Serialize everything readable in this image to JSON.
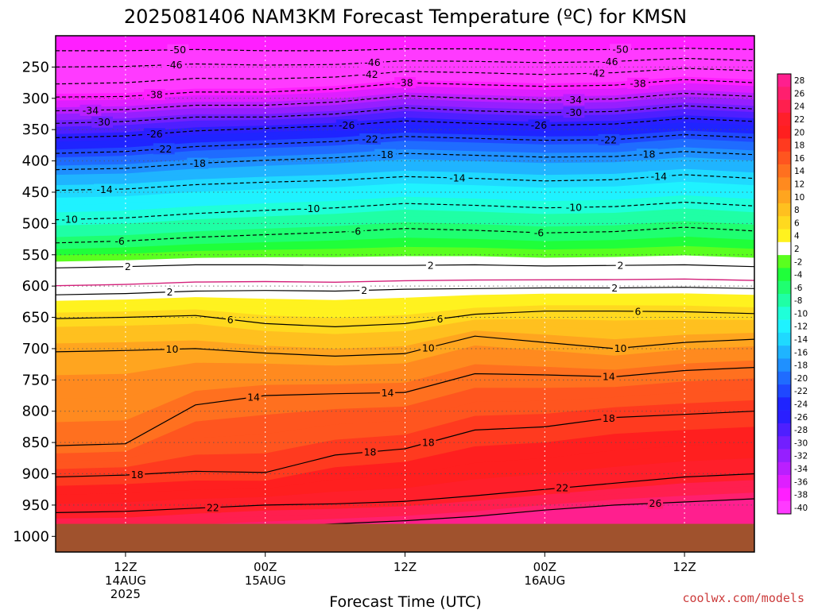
{
  "title": "2025081406 NAM3KM Forecast Temperature (ºC) for KMSN",
  "credit": "coolwx.com/models",
  "chart_data": {
    "type": "heatmap",
    "title": "2025081406 NAM3KM Forecast Temperature (ºC) for KMSN",
    "xlabel": "Forecast Time (UTC)",
    "ylabel": "",
    "x_ticks": [
      {
        "hour": 6,
        "lines": [
          "12Z",
          "14AUG",
          "2025"
        ]
      },
      {
        "hour": 18,
        "lines": [
          "00Z",
          "15AUG"
        ]
      },
      {
        "hour": 30,
        "lines": [
          "12Z"
        ]
      },
      {
        "hour": 42,
        "lines": [
          "00Z",
          "16AUG"
        ]
      },
      {
        "hour": 54,
        "lines": [
          "12Z"
        ]
      }
    ],
    "x_range_hours": [
      0,
      60
    ],
    "y_ticks": [
      250,
      300,
      350,
      400,
      450,
      500,
      550,
      600,
      650,
      700,
      750,
      800,
      850,
      900,
      950,
      1000
    ],
    "y_range_hPa": [
      200,
      1025
    ],
    "y_axis_inverted": true,
    "ground_pressure_hPa": 980,
    "grid": true,
    "colorbar": {
      "labels": [
        28,
        26,
        24,
        22,
        20,
        18,
        16,
        14,
        12,
        10,
        8,
        6,
        4,
        2,
        -2,
        -4,
        -6,
        -8,
        -10,
        -12,
        -14,
        -16,
        -18,
        -20,
        -22,
        -24,
        -26,
        -28,
        -30,
        -32,
        -34,
        -36,
        -38,
        -40
      ],
      "colors": [
        "#ff1f8e",
        "#ff1f6e",
        "#ff1f4e",
        "#ff1f2a",
        "#ff1f1f",
        "#ff3a1f",
        "#ff551f",
        "#ff701f",
        "#ff8a1f",
        "#ffa51f",
        "#ffc01f",
        "#ffd91f",
        "#fff21f",
        "#ffffff",
        "#5aff1f",
        "#1fff3a",
        "#1fff70",
        "#1fffa5",
        "#1fffd9",
        "#1ff2ff",
        "#1fd9ff",
        "#1fb4ff",
        "#1f90ff",
        "#1f6cff",
        "#1f48ff",
        "#1f24ff",
        "#2a1fff",
        "#4e1fff",
        "#721fff",
        "#961fff",
        "#ba1fff",
        "#de1fff",
        "#ff1fff",
        "#ff3aff"
      ]
    },
    "isotherms": [
      {
        "temp": -50,
        "p": [
          224,
          224,
          222,
          224,
          224,
          221,
          221,
          223,
          222,
          220,
          222
        ],
        "labels": [
          {
            "hour": 10.5,
            "text": "-50"
          },
          {
            "hour": 48.5,
            "text": "-50"
          }
        ]
      },
      {
        "temp": -46,
        "p": [
          250,
          249,
          245,
          247,
          246,
          240,
          241,
          243,
          241,
          236,
          240
        ],
        "labels": [
          {
            "hour": 10.2,
            "text": "-46"
          },
          {
            "hour": 27.2,
            "text": "-46"
          },
          {
            "hour": 47.6,
            "text": "-46"
          }
        ]
      },
      {
        "temp": -42,
        "p": [
          277,
          275,
          268,
          269,
          266,
          257,
          259,
          262,
          259,
          252,
          256
        ],
        "labels": [
          {
            "hour": 27.0,
            "text": "-42"
          },
          {
            "hour": 46.5,
            "text": "-42"
          }
        ]
      },
      {
        "temp": -38,
        "p": [
          298,
          297,
          290,
          290,
          285,
          275,
          278,
          281,
          279,
          270,
          275
        ],
        "labels": [
          {
            "hour": 8.5,
            "text": "-38"
          },
          {
            "hour": 30.0,
            "text": "-38"
          },
          {
            "hour": 50.0,
            "text": "-38"
          }
        ]
      },
      {
        "temp": -34,
        "p": [
          320,
          318,
          311,
          311,
          306,
          296,
          300,
          303,
          301,
          292,
          297
        ],
        "labels": [
          {
            "hour": 3.0,
            "text": "-34"
          },
          {
            "hour": 44.5,
            "text": "-34"
          }
        ]
      },
      {
        "temp": -30,
        "p": [
          340,
          337,
          330,
          330,
          325,
          315,
          320,
          323,
          321,
          312,
          317
        ],
        "labels": [
          {
            "hour": 4.0,
            "text": "-30"
          },
          {
            "hour": 44.5,
            "text": "-30"
          }
        ]
      },
      {
        "temp": -26,
        "p": [
          363,
          360,
          352,
          348,
          344,
          336,
          340,
          343,
          341,
          332,
          337
        ],
        "labels": [
          {
            "hour": 8.5,
            "text": "-26"
          },
          {
            "hour": 25.0,
            "text": "-26"
          },
          {
            "hour": 41.5,
            "text": "-26"
          }
        ]
      },
      {
        "temp": -22,
        "p": [
          388,
          385,
          377,
          373,
          369,
          361,
          364,
          367,
          366,
          358,
          363
        ],
        "labels": [
          {
            "hour": 9.3,
            "text": "-22"
          },
          {
            "hour": 27.0,
            "text": "-22"
          },
          {
            "hour": 47.5,
            "text": "-22"
          }
        ]
      },
      {
        "temp": -18,
        "p": [
          414,
          412,
          404,
          399,
          395,
          388,
          391,
          394,
          393,
          385,
          390
        ],
        "labels": [
          {
            "hour": 12.2,
            "text": "-18"
          },
          {
            "hour": 28.3,
            "text": "-18"
          },
          {
            "hour": 50.8,
            "text": "-18"
          }
        ]
      },
      {
        "temp": -14,
        "p": [
          447,
          445,
          438,
          434,
          431,
          425,
          428,
          432,
          430,
          422,
          428
        ],
        "labels": [
          {
            "hour": 4.2,
            "text": "-14"
          },
          {
            "hour": 34.5,
            "text": "-14"
          },
          {
            "hour": 51.8,
            "text": "-14"
          }
        ]
      },
      {
        "temp": -10,
        "p": [
          494,
          491,
          484,
          479,
          475,
          468,
          471,
          475,
          473,
          466,
          472
        ],
        "labels": [
          {
            "hour": 1.2,
            "text": "-10"
          },
          {
            "hour": 22.0,
            "text": "-10"
          },
          {
            "hour": 44.5,
            "text": "-10"
          }
        ]
      },
      {
        "temp": -6,
        "p": [
          531,
          528,
          522,
          518,
          514,
          508,
          511,
          515,
          513,
          506,
          512
        ],
        "labels": [
          {
            "hour": 5.5,
            "text": "-6"
          },
          {
            "hour": 25.8,
            "text": "-6"
          },
          {
            "hour": 41.5,
            "text": "-6"
          }
        ]
      },
      {
        "temp": 2,
        "p": [
          571,
          569,
          566,
          566,
          567,
          567,
          566,
          568,
          567,
          566,
          569
        ],
        "labels": [
          {
            "hour": 6.2,
            "text": "2"
          },
          {
            "hour": 32.2,
            "text": "2"
          },
          {
            "hour": 48.5,
            "text": "2"
          }
        ]
      },
      {
        "temp": 2,
        "p": [
          614,
          612,
          608,
          607,
          608,
          605,
          604,
          603,
          603,
          602,
          604
        ],
        "labels": [
          {
            "hour": 9.8,
            "text": "2"
          },
          {
            "hour": 26.5,
            "text": "2"
          },
          {
            "hour": 48.0,
            "text": "2"
          }
        ]
      },
      {
        "temp": 6,
        "p": [
          652,
          650,
          647,
          660,
          665,
          660,
          645,
          640,
          640,
          641,
          644
        ],
        "labels": [
          {
            "hour": 15.0,
            "text": "6"
          },
          {
            "hour": 33.0,
            "text": "6"
          },
          {
            "hour": 50.0,
            "text": "6"
          }
        ]
      },
      {
        "temp": 10,
        "p": [
          705,
          703,
          700,
          707,
          712,
          708,
          680,
          690,
          700,
          690,
          685
        ],
        "labels": [
          {
            "hour": 10.0,
            "text": "10"
          },
          {
            "hour": 32.0,
            "text": "10"
          },
          {
            "hour": 48.5,
            "text": "10"
          }
        ]
      },
      {
        "temp": 14,
        "p": [
          855,
          852,
          790,
          775,
          772,
          770,
          740,
          742,
          745,
          735,
          730
        ],
        "labels": [
          {
            "hour": 17.0,
            "text": "14"
          },
          {
            "hour": 28.5,
            "text": "14"
          },
          {
            "hour": 47.5,
            "text": "14"
          }
        ]
      },
      {
        "temp": 18,
        "p": [
          905,
          902,
          896,
          898,
          870,
          860,
          830,
          825,
          810,
          805,
          800
        ],
        "labels": [
          {
            "hour": 7.0,
            "text": "18"
          },
          {
            "hour": 27.0,
            "text": "18"
          },
          {
            "hour": 32.0,
            "text": "18"
          },
          {
            "hour": 47.5,
            "text": "18"
          }
        ]
      },
      {
        "temp": 22,
        "p": [
          962,
          960,
          955,
          950,
          948,
          944,
          935,
          925,
          915,
          905,
          900
        ],
        "labels": [
          {
            "hour": 13.5,
            "text": "22"
          },
          {
            "hour": 43.5,
            "text": "22"
          }
        ]
      },
      {
        "temp": 26,
        "p": [
          1000,
          1000,
          990,
          985,
          980,
          975,
          968,
          958,
          950,
          945,
          940
        ],
        "labels": [
          {
            "hour": 51.5,
            "text": "26"
          }
        ]
      }
    ]
  }
}
